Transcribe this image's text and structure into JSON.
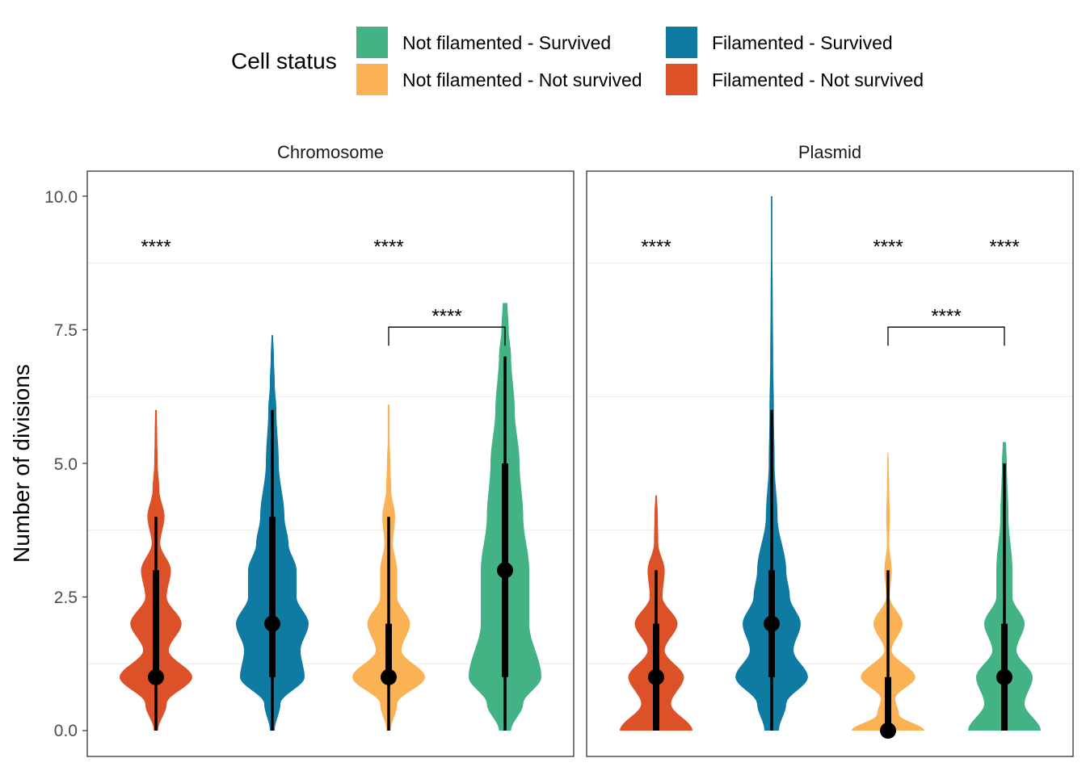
{
  "legend": {
    "title": "Cell status",
    "entries": [
      {
        "label": "Not filamented - Survived",
        "color": "#43B284"
      },
      {
        "label": "Filamented - Survived",
        "color": "#0F7BA2"
      },
      {
        "label": "Not filamented - Not survived",
        "color": "#FAB255"
      },
      {
        "label": "Filamented - Not survived",
        "color": "#DD5129"
      }
    ]
  },
  "chart_data": {
    "type": "violin",
    "ylabel": "Number of divisions",
    "ylim": [
      0,
      10
    ],
    "y_ticks": [
      "0.0",
      "2.5",
      "5.0",
      "7.5",
      "10.0"
    ],
    "grid": true,
    "legend_position": "top",
    "groups": [
      "Filamented - Not survived",
      "Filamented - Survived",
      "Not filamented - Not survived",
      "Not filamented - Survived"
    ],
    "significance_label": "****",
    "panels": [
      {
        "title": "Chromosome",
        "violins": [
          {
            "group": "Filamented - Not survived",
            "color": "#DD5129",
            "max": 6.0,
            "density": [
              [
                0,
                0.05
              ],
              [
                0.5,
                0.25
              ],
              [
                1,
                0.85
              ],
              [
                1.5,
                0.3
              ],
              [
                2,
                0.6
              ],
              [
                2.5,
                0.25
              ],
              [
                3,
                0.35
              ],
              [
                3.5,
                0.1
              ],
              [
                4,
                0.2
              ],
              [
                4.5,
                0.08
              ],
              [
                5,
                0.04
              ],
              [
                5.5,
                0.03
              ],
              [
                6,
                0.02
              ]
            ],
            "median": 1,
            "q1": 1,
            "q3": 3,
            "whisker_low": 0,
            "whisker_high": 4
          },
          {
            "group": "Filamented - Survived",
            "color": "#0F7BA2",
            "max": 7.4,
            "density": [
              [
                0,
                0.03
              ],
              [
                0.5,
                0.1
              ],
              [
                1,
                0.4
              ],
              [
                1.5,
                0.35
              ],
              [
                2,
                0.45
              ],
              [
                2.5,
                0.3
              ],
              [
                3,
                0.3
              ],
              [
                3.5,
                0.2
              ],
              [
                4,
                0.15
              ],
              [
                5,
                0.08
              ],
              [
                6,
                0.05
              ],
              [
                6.5,
                0.03
              ],
              [
                7,
                0.02
              ],
              [
                7.4,
                0.01
              ]
            ],
            "median": 2,
            "q1": 1,
            "q3": 4,
            "whisker_low": 0,
            "whisker_high": 6
          },
          {
            "group": "Not filamented - Not survived",
            "color": "#FAB255",
            "max": 6.1,
            "density": [
              [
                0,
                0.05
              ],
              [
                0.5,
                0.2
              ],
              [
                1,
                0.85
              ],
              [
                1.5,
                0.3
              ],
              [
                2,
                0.5
              ],
              [
                2.5,
                0.2
              ],
              [
                3,
                0.2
              ],
              [
                3.5,
                0.1
              ],
              [
                4,
                0.15
              ],
              [
                4.5,
                0.06
              ],
              [
                5,
                0.04
              ],
              [
                5.5,
                0.02
              ],
              [
                6,
                0.02
              ]
            ],
            "median": 1,
            "q1": 1,
            "q3": 2,
            "whisker_low": 0,
            "whisker_high": 4
          },
          {
            "group": "Not filamented - Survived",
            "color": "#43B284",
            "max": 8.0,
            "density": [
              [
                0,
                0.05
              ],
              [
                0.5,
                0.15
              ],
              [
                1,
                0.3
              ],
              [
                2,
                0.2
              ],
              [
                3,
                0.2
              ],
              [
                4,
                0.15
              ],
              [
                5,
                0.12
              ],
              [
                6,
                0.08
              ],
              [
                7,
                0.05
              ],
              [
                7.5,
                0.03
              ],
              [
                8,
                0.02
              ]
            ],
            "median": 3,
            "q1": 1,
            "q3": 5,
            "whisker_low": 0,
            "whisker_high": 7
          }
        ],
        "top_markers": [
          {
            "group_index": 0,
            "y": 9.15
          },
          {
            "group_index": 2,
            "y": 9.15
          }
        ],
        "brackets": [
          {
            "from": 2,
            "to": 3,
            "y": 7.55,
            "label_y": 7.85
          }
        ]
      },
      {
        "title": "Plasmid",
        "violins": [
          {
            "group": "Filamented - Not survived",
            "color": "#DD5129",
            "max": 4.4,
            "density": [
              [
                0,
                0.85
              ],
              [
                0.5,
                0.35
              ],
              [
                1,
                0.65
              ],
              [
                1.5,
                0.2
              ],
              [
                2,
                0.5
              ],
              [
                2.5,
                0.15
              ],
              [
                3,
                0.2
              ],
              [
                3.5,
                0.05
              ],
              [
                4,
                0.04
              ],
              [
                4.4,
                0.02
              ]
            ],
            "median": 1,
            "q1": 0,
            "q3": 2,
            "whisker_low": 0,
            "whisker_high": 3
          },
          {
            "group": "Filamented - Survived",
            "color": "#0F7BA2",
            "max": 10.0,
            "density": [
              [
                0,
                0.1
              ],
              [
                0.5,
                0.2
              ],
              [
                1,
                0.5
              ],
              [
                1.5,
                0.3
              ],
              [
                2,
                0.4
              ],
              [
                2.5,
                0.25
              ],
              [
                3,
                0.2
              ],
              [
                4,
                0.08
              ],
              [
                5,
                0.04
              ],
              [
                6,
                0.03
              ],
              [
                7,
                0.02
              ],
              [
                8,
                0.015
              ],
              [
                9,
                0.01
              ],
              [
                10,
                0.01
              ]
            ],
            "median": 2,
            "q1": 1,
            "q3": 3,
            "whisker_low": 0,
            "whisker_high": 6
          },
          {
            "group": "Not filamented - Not survived",
            "color": "#FAB255",
            "max": 5.2,
            "density": [
              [
                0,
                1.0
              ],
              [
                0.3,
                0.3
              ],
              [
                0.6,
                0.2
              ],
              [
                1,
                0.75
              ],
              [
                1.5,
                0.1
              ],
              [
                2,
                0.4
              ],
              [
                2.5,
                0.05
              ],
              [
                3,
                0.1
              ],
              [
                3.5,
                0.03
              ],
              [
                4,
                0.05
              ],
              [
                4.5,
                0.03
              ],
              [
                5,
                0.02
              ],
              [
                5.2,
                0.01
              ]
            ],
            "median": 0,
            "q1": 0,
            "q3": 1,
            "whisker_low": 0,
            "whisker_high": 3
          },
          {
            "group": "Not filamented - Survived",
            "color": "#43B284",
            "max": 5.4,
            "density": [
              [
                0,
                0.45
              ],
              [
                0.5,
                0.25
              ],
              [
                1,
                0.35
              ],
              [
                1.5,
                0.15
              ],
              [
                2,
                0.25
              ],
              [
                2.5,
                0.1
              ],
              [
                3,
                0.1
              ],
              [
                4,
                0.05
              ],
              [
                5,
                0.03
              ],
              [
                5.4,
                0.02
              ]
            ],
            "median": 1,
            "q1": 0,
            "q3": 2,
            "whisker_low": 0,
            "whisker_high": 5
          }
        ],
        "top_markers": [
          {
            "group_index": 0,
            "y": 9.15
          },
          {
            "group_index": 2,
            "y": 9.15
          },
          {
            "group_index": 3,
            "y": 9.15
          }
        ],
        "brackets": [
          {
            "from": 2,
            "to": 3,
            "y": 7.55,
            "label_y": 7.85
          }
        ]
      }
    ]
  }
}
